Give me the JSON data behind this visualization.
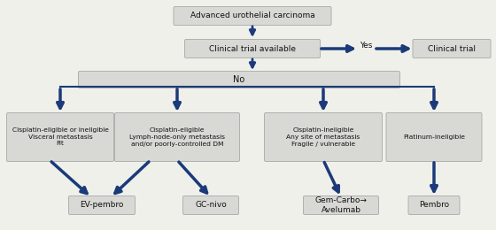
{
  "bg_color": "#f0f0eb",
  "box_color": "#d8d8d5",
  "box_edge_color": "#b0b0b0",
  "arrow_color": "#1a3a7a",
  "text_color": "#111111",
  "title_box": "Advanced urothelial carcinoma",
  "clinical_trial_box": "Clinical trial available",
  "yes_label": "Yes",
  "clinical_trial_result": "Clinical trial",
  "no_box": "No",
  "leaf_boxes": [
    "Cisplatin-eligible or ineligible\nVisceral metastasis\nFit",
    "Cisplatin-eligible\nLymph-node-only metastasis\nand/or poorly-controlled DM",
    "Cisplatin-ineligible\nAny site of metastasis\nFragile / vulnerable",
    "Platinum-ineligible"
  ],
  "result_boxes": [
    "EV-pembro",
    "GC-nivo",
    "Gem-Carbo→\nAvelumab",
    "Pembro"
  ],
  "figsize": [
    5.6,
    2.6
  ],
  "dpi": 100
}
